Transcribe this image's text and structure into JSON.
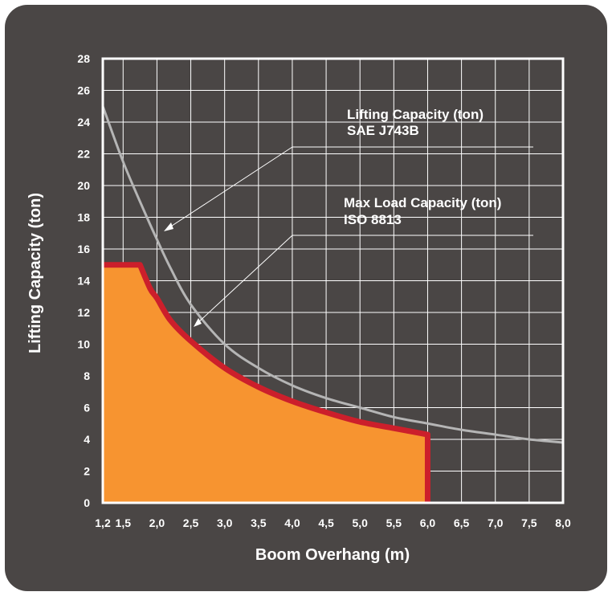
{
  "colors": {
    "panel": "#4a4645",
    "grid": "#ffffff",
    "sae_line": "#b5b5b5",
    "iso_fill": "#f79430",
    "iso_outline": "#cc1f2b",
    "text": "#ffffff"
  },
  "chart_data": {
    "type": "area",
    "xlabel": "Boom Overhang (m)",
    "ylabel": "Lifting Capacity (ton)",
    "xlim": [
      1.2,
      8.0
    ],
    "ylim": [
      0,
      28
    ],
    "x_ticks": [
      "1,2",
      "1,5",
      "2,0",
      "2,5",
      "3,0",
      "3,5",
      "4,0",
      "4,5",
      "5,0",
      "5,5",
      "6,0",
      "6,5",
      "7,0",
      "7,5",
      "8,0"
    ],
    "x_tick_values": [
      1.2,
      1.5,
      2.0,
      2.5,
      3.0,
      3.5,
      4.0,
      4.5,
      5.0,
      5.5,
      6.0,
      6.5,
      7.0,
      7.5,
      8.0
    ],
    "y_ticks": [
      "0",
      "2",
      "4",
      "6",
      "8",
      "10",
      "12",
      "14",
      "16",
      "18",
      "20",
      "22",
      "24",
      "26",
      "28"
    ],
    "y_tick_values": [
      0,
      2,
      4,
      6,
      8,
      10,
      12,
      14,
      16,
      18,
      20,
      22,
      24,
      26,
      28
    ],
    "grid": true,
    "series": [
      {
        "name": "Lifting Capacity (ton) SAE J743B",
        "style": "line",
        "x": [
          1.2,
          1.5,
          1.8,
          2.0,
          2.2,
          2.5,
          3.0,
          3.5,
          4.0,
          4.5,
          5.0,
          5.5,
          6.0,
          6.5,
          7.0,
          7.5,
          8.0
        ],
        "y": [
          25.0,
          21.5,
          18.5,
          16.6,
          14.8,
          12.5,
          10.0,
          8.5,
          7.4,
          6.6,
          6.0,
          5.4,
          5.0,
          4.6,
          4.3,
          4.0,
          3.8
        ]
      },
      {
        "name": "Max Load Capacity (ton) ISO 8813",
        "style": "filled-area",
        "x": [
          1.2,
          1.5,
          1.75,
          1.9,
          2.0,
          2.2,
          2.5,
          3.0,
          3.5,
          4.0,
          4.5,
          5.0,
          5.5,
          6.0
        ],
        "y": [
          15.0,
          15.0,
          15.0,
          13.5,
          12.9,
          11.5,
          10.2,
          8.5,
          7.3,
          6.4,
          5.7,
          5.1,
          4.7,
          4.3
        ]
      }
    ],
    "annotations": [
      {
        "lines": [
          "Lifting Capacity (ton)",
          "SAE J743B"
        ],
        "points_to": {
          "x": 2.0,
          "y": 17.2
        }
      },
      {
        "lines": [
          "Max Load Capacity (ton)",
          "ISO 8813"
        ],
        "points_to": {
          "x": 2.4,
          "y": 11.1
        }
      }
    ]
  }
}
